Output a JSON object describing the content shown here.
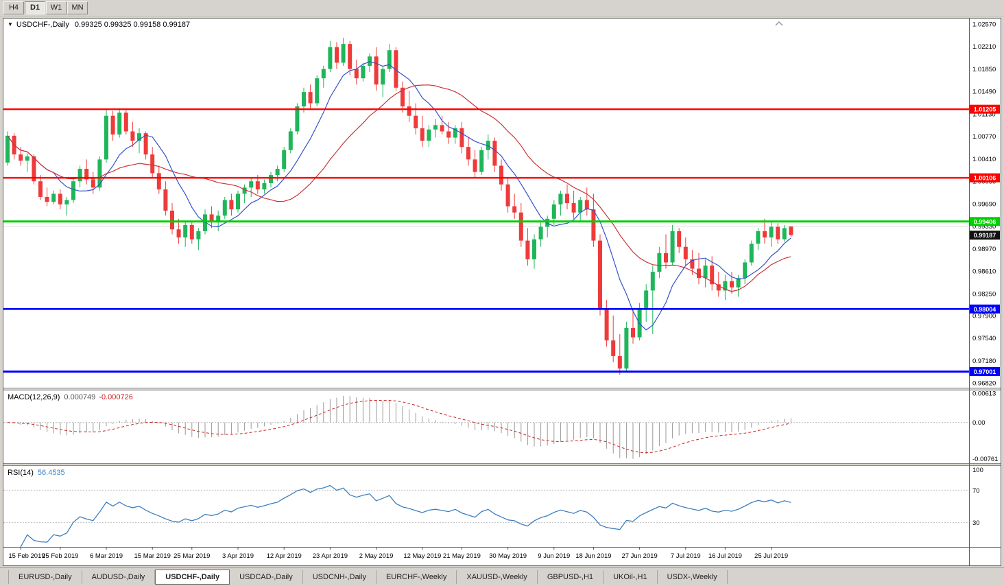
{
  "toolbar": {
    "timeframes": [
      {
        "label": "H4",
        "active": false
      },
      {
        "label": "D1",
        "active": true
      },
      {
        "label": "W1",
        "active": false
      },
      {
        "label": "MN",
        "active": false
      }
    ]
  },
  "tabs": [
    {
      "label": "EURUSD-,Daily",
      "active": false
    },
    {
      "label": "AUDUSD-,Daily",
      "active": false
    },
    {
      "label": "USDCHF-,Daily",
      "active": true
    },
    {
      "label": "USDCAD-,Daily",
      "active": false
    },
    {
      "label": "USDCNH-,Daily",
      "active": false
    },
    {
      "label": "EURCHF-,Weekly",
      "active": false
    },
    {
      "label": "XAUUSD-,Weekly",
      "active": false
    },
    {
      "label": "GBPUSD-,H1",
      "active": false
    },
    {
      "label": "UKOil-,H1",
      "active": false
    },
    {
      "label": "USDX-,Weekly",
      "active": false
    }
  ],
  "chart_data": {
    "type": "candlestick",
    "symbol": "USDCHF-",
    "timeframe": "Daily",
    "title": {
      "symbol": "USDCHF-,Daily",
      "ohlc": "0.99325 0.99325 0.99158 0.99187"
    },
    "colors": {
      "bull": "#1fb65a",
      "bear": "#ef3a3a",
      "ma_fast": "#3352cc",
      "ma_slow": "#cc3333",
      "level_red": "#ff0000",
      "level_green": "#00cf00",
      "level_blue": "#0000ff",
      "current_price_box": "#111111",
      "macd_hist": "#9a9a9a",
      "macd_signal": "#cc2222",
      "rsi_line": "#3d7ebf"
    },
    "price_axis_labels": [
      "1.02570",
      "1.02210",
      "1.01850",
      "1.01490",
      "1.01130",
      "1.00770",
      "1.00410",
      "1.00050",
      "0.99690",
      "0.99330",
      "0.98970",
      "0.98610",
      "0.98250",
      "0.97900",
      "0.97540",
      "0.97180",
      "0.96820"
    ],
    "levels": [
      {
        "value": 1.01205,
        "label": "1.01205",
        "color": "#ff0000",
        "width": 2.4
      },
      {
        "value": 1.00106,
        "label": "1.00106",
        "color": "#ff0000",
        "width": 2.4
      },
      {
        "value": 0.99406,
        "label": "0.99406",
        "color": "#00cf00",
        "width": 3
      },
      {
        "value": 0.98004,
        "label": "0.98004",
        "color": "#0000ff",
        "width": 2.6
      },
      {
        "value": 0.97001,
        "label": "0.97001",
        "color": "#0000ff",
        "width": 3
      }
    ],
    "current_price": {
      "value": 0.99187,
      "label": "0.99187"
    },
    "moving_averages": [
      {
        "period": 8,
        "color": "#3352cc"
      },
      {
        "period": 21,
        "color": "#cc3333"
      }
    ],
    "candles": [
      [
        1.0035,
        1.0085,
        1.003,
        1.0078
      ],
      [
        1.0078,
        1.0082,
        1.004,
        1.0048
      ],
      [
        1.0048,
        1.006,
        1.003,
        1.0038
      ],
      [
        1.0038,
        1.005,
        1.002,
        1.0045
      ],
      [
        1.0045,
        1.0048,
        1.0,
        1.0005
      ],
      [
        1.0005,
        1.0015,
        0.9975,
        0.998
      ],
      [
        0.998,
        0.9995,
        0.9965,
        0.9972
      ],
      [
        0.9972,
        0.999,
        0.9968,
        0.9985
      ],
      [
        0.9985,
        0.9992,
        0.996,
        0.9968
      ],
      [
        0.9968,
        0.998,
        0.995,
        0.9975
      ],
      [
        0.9975,
        1.001,
        0.997,
        1.0005
      ],
      [
        1.0005,
        1.003,
        0.9995,
        1.0025
      ],
      [
        1.0025,
        1.004,
        1.0,
        1.0008
      ],
      [
        1.0008,
        1.002,
        0.9985,
        0.9995
      ],
      [
        0.9995,
        1.0045,
        0.999,
        1.004
      ],
      [
        1.004,
        1.012,
        1.0035,
        1.011
      ],
      [
        1.011,
        1.0118,
        1.007,
        1.008
      ],
      [
        1.008,
        1.0122,
        1.0075,
        1.0115
      ],
      [
        1.0115,
        1.012,
        1.008,
        1.0085
      ],
      [
        1.0085,
        1.01,
        1.006,
        1.007
      ],
      [
        1.007,
        1.009,
        1.005,
        1.0082
      ],
      [
        1.0082,
        1.0085,
        1.004,
        1.0048
      ],
      [
        1.0048,
        1.006,
        1.001,
        1.0018
      ],
      [
        1.0018,
        1.003,
        0.9985,
        0.9992
      ],
      [
        0.9992,
        1.0005,
        0.995,
        0.9958
      ],
      [
        0.9958,
        0.997,
        0.992,
        0.9928
      ],
      [
        0.9928,
        0.9945,
        0.9905,
        0.9915
      ],
      [
        0.9915,
        0.994,
        0.99,
        0.9935
      ],
      [
        0.9935,
        0.994,
        0.9905,
        0.9912
      ],
      [
        0.9912,
        0.993,
        0.9895,
        0.9925
      ],
      [
        0.9925,
        0.996,
        0.992,
        0.9952
      ],
      [
        0.9952,
        0.9965,
        0.993,
        0.994
      ],
      [
        0.994,
        0.9958,
        0.9925,
        0.995
      ],
      [
        0.995,
        0.998,
        0.9945,
        0.9975
      ],
      [
        0.9975,
        0.9985,
        0.995,
        0.996
      ],
      [
        0.996,
        0.999,
        0.9955,
        0.9985
      ],
      [
        0.9985,
        1.0,
        0.997,
        0.9995
      ],
      [
        0.9995,
        1.001,
        0.998,
        1.0005
      ],
      [
        1.0005,
        1.0015,
        0.9985,
        0.9992
      ],
      [
        0.9992,
        1.0008,
        0.9985,
        1.0002
      ],
      [
        1.0002,
        1.002,
        0.9995,
        1.0015
      ],
      [
        1.0015,
        1.003,
        1.0005,
        1.0025
      ],
      [
        1.0025,
        1.006,
        1.002,
        1.0055
      ],
      [
        1.0055,
        1.009,
        1.005,
        1.0085
      ],
      [
        1.0085,
        1.013,
        1.008,
        1.0125
      ],
      [
        1.0125,
        1.0155,
        1.0115,
        1.0148
      ],
      [
        1.0148,
        1.016,
        1.012,
        1.013
      ],
      [
        1.013,
        1.0175,
        1.0125,
        1.017
      ],
      [
        1.017,
        1.019,
        1.0155,
        1.0185
      ],
      [
        1.0185,
        1.023,
        1.018,
        1.022
      ],
      [
        1.022,
        1.0228,
        1.0185,
        1.0195
      ],
      [
        1.0195,
        1.0235,
        1.019,
        1.0225
      ],
      [
        1.0225,
        1.023,
        1.0175,
        1.0185
      ],
      [
        1.0185,
        1.02,
        1.016,
        1.017
      ],
      [
        1.017,
        1.0195,
        1.0165,
        1.019
      ],
      [
        1.019,
        1.021,
        1.018,
        1.0205
      ],
      [
        1.0205,
        1.022,
        1.015,
        1.016
      ],
      [
        1.016,
        1.019,
        1.014,
        1.0185
      ],
      [
        1.0185,
        1.0225,
        1.018,
        1.0215
      ],
      [
        1.0215,
        1.022,
        1.015,
        1.0155
      ],
      [
        1.0155,
        1.0165,
        1.0115,
        1.0125
      ],
      [
        1.0125,
        1.015,
        1.01,
        1.011
      ],
      [
        1.011,
        1.013,
        1.008,
        1.009
      ],
      [
        1.009,
        1.011,
        1.006,
        1.007
      ],
      [
        1.007,
        1.0095,
        1.006,
        1.0088
      ],
      [
        1.0088,
        1.0105,
        1.0075,
        1.0095
      ],
      [
        1.0095,
        1.011,
        1.008,
        1.0085
      ],
      [
        1.0085,
        1.01,
        1.0065,
        1.0075
      ],
      [
        1.0075,
        1.0095,
        1.0065,
        1.009
      ],
      [
        1.009,
        1.01,
        1.005,
        1.006
      ],
      [
        1.006,
        1.0075,
        1.003,
        1.004
      ],
      [
        1.004,
        1.0055,
        1.001,
        1.002
      ],
      [
        1.002,
        1.006,
        1.0015,
        1.0055
      ],
      [
        1.0055,
        1.008,
        1.004,
        1.007
      ],
      [
        1.007,
        1.0075,
        1.002,
        1.003
      ],
      [
        1.003,
        1.004,
        0.999,
        1.0
      ],
      [
        1.0,
        1.001,
        0.9955,
        0.9965
      ],
      [
        0.9965,
        0.9985,
        0.9945,
        0.9955
      ],
      [
        0.9955,
        0.997,
        0.99,
        0.991
      ],
      [
        0.991,
        0.993,
        0.987,
        0.988
      ],
      [
        0.988,
        0.992,
        0.9865,
        0.9912
      ],
      [
        0.9912,
        0.994,
        0.99,
        0.9932
      ],
      [
        0.9932,
        0.995,
        0.9915,
        0.9945
      ],
      [
        0.9945,
        0.9975,
        0.9935,
        0.9968
      ],
      [
        0.9968,
        0.999,
        0.995,
        0.9985
      ],
      [
        0.9985,
        1.0,
        0.996,
        0.997
      ],
      [
        0.997,
        0.999,
        0.9945,
        0.9955
      ],
      [
        0.9955,
        0.998,
        0.994,
        0.9975
      ],
      [
        0.9975,
        0.9995,
        0.995,
        0.996
      ],
      [
        0.996,
        0.9985,
        0.99,
        0.991
      ],
      [
        0.991,
        0.992,
        0.979,
        0.98
      ],
      [
        0.98,
        0.9815,
        0.974,
        0.975
      ],
      [
        0.975,
        0.979,
        0.9715,
        0.9725
      ],
      [
        0.9725,
        0.976,
        0.9695,
        0.9705
      ],
      [
        0.9705,
        0.978,
        0.97,
        0.977
      ],
      [
        0.977,
        0.98,
        0.9745,
        0.9755
      ],
      [
        0.9755,
        0.981,
        0.975,
        0.98
      ],
      [
        0.98,
        0.984,
        0.978,
        0.983
      ],
      [
        0.983,
        0.987,
        0.976,
        0.986
      ],
      [
        0.986,
        0.99,
        0.985,
        0.989
      ],
      [
        0.989,
        0.992,
        0.9865,
        0.9875
      ],
      [
        0.9875,
        0.9935,
        0.987,
        0.9925
      ],
      [
        0.9925,
        0.993,
        0.989,
        0.99
      ],
      [
        0.99,
        0.9915,
        0.987,
        0.988
      ],
      [
        0.988,
        0.9895,
        0.9855,
        0.9865
      ],
      [
        0.9865,
        0.989,
        0.984,
        0.985
      ],
      [
        0.985,
        0.988,
        0.9835,
        0.987
      ],
      [
        0.987,
        0.9885,
        0.983,
        0.984
      ],
      [
        0.984,
        0.986,
        0.982,
        0.983
      ],
      [
        0.983,
        0.9855,
        0.9815,
        0.9845
      ],
      [
        0.9845,
        0.986,
        0.9825,
        0.9835
      ],
      [
        0.9835,
        0.9855,
        0.982,
        0.985
      ],
      [
        0.985,
        0.988,
        0.984,
        0.9875
      ],
      [
        0.9875,
        0.991,
        0.987,
        0.9905
      ],
      [
        0.9905,
        0.993,
        0.9895,
        0.9925
      ],
      [
        0.9925,
        0.9945,
        0.9905,
        0.9915
      ],
      [
        0.9915,
        0.994,
        0.99,
        0.9932
      ],
      [
        0.9932,
        0.9938,
        0.9905,
        0.9912
      ],
      [
        0.9912,
        0.9935,
        0.9908,
        0.993
      ],
      [
        0.99325,
        0.99325,
        0.99158,
        0.99187
      ]
    ],
    "date_ticks": [
      {
        "label": "15 Feb 2019",
        "index": 2
      },
      {
        "label": "25 Feb 2019",
        "index": 8
      },
      {
        "label": "6 Mar 2019",
        "index": 15
      },
      {
        "label": "15 Mar 2019",
        "index": 22
      },
      {
        "label": "25 Mar 2019",
        "index": 28
      },
      {
        "label": "3 Apr 2019",
        "index": 35
      },
      {
        "label": "12 Apr 2019",
        "index": 42
      },
      {
        "label": "23 Apr 2019",
        "index": 49
      },
      {
        "label": "2 May 2019",
        "index": 56
      },
      {
        "label": "12 May 2019",
        "index": 63
      },
      {
        "label": "21 May 2019",
        "index": 69
      },
      {
        "label": "30 May 2019",
        "index": 76
      },
      {
        "label": "9 Jun 2019",
        "index": 83
      },
      {
        "label": "18 Jun 2019",
        "index": 89
      },
      {
        "label": "27 Jun 2019",
        "index": 96
      },
      {
        "label": "7 Jul 2019",
        "index": 103
      },
      {
        "label": "16 Jul 2019",
        "index": 109
      },
      {
        "label": "25 Jul 2019",
        "index": 116
      }
    ],
    "macd": {
      "name": "MACD(12,26,9)",
      "value_main": "0.000749",
      "value_signal": "-0.000726",
      "fast": 12,
      "slow": 26,
      "signal": 9,
      "axis_labels": [
        {
          "text": "0.00613",
          "value": 0.00613
        },
        {
          "text": "0.00",
          "value": 0
        },
        {
          "text": "-0.00761",
          "value": -0.00761
        }
      ]
    },
    "rsi": {
      "name": "RSI(14)",
      "value": "56.4535",
      "period": 14,
      "guide_levels": [
        70,
        30
      ],
      "axis_labels": [
        {
          "text": "100",
          "value": 100
        },
        {
          "text": "70",
          "value": 70
        },
        {
          "text": "30",
          "value": 30
        }
      ]
    }
  }
}
